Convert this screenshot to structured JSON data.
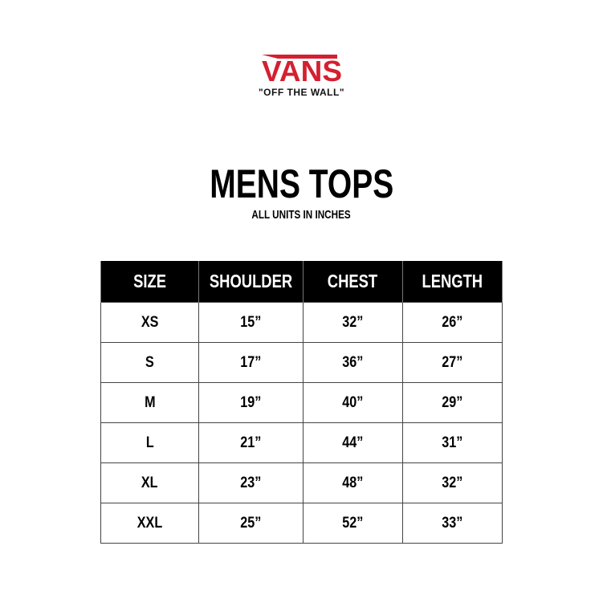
{
  "brand": {
    "name": "VANS",
    "tagline": "\"OFF THE WALL\"",
    "color": "#d42030"
  },
  "title": "MENS TOPS",
  "subtitle": "ALL UNITS IN INCHES",
  "table": {
    "headers": [
      "SIZE",
      "SHOULDER",
      "CHEST",
      "LENGTH"
    ],
    "rows": [
      [
        "XS",
        "15”",
        "32”",
        "26”"
      ],
      [
        "S",
        "17”",
        "36”",
        "27”"
      ],
      [
        "M",
        "19”",
        "40”",
        "29”"
      ],
      [
        "L",
        "21”",
        "44”",
        "31”"
      ],
      [
        "XL",
        "23”",
        "48”",
        "32”"
      ],
      [
        "XXL",
        "25”",
        "52”",
        "33”"
      ]
    ]
  }
}
